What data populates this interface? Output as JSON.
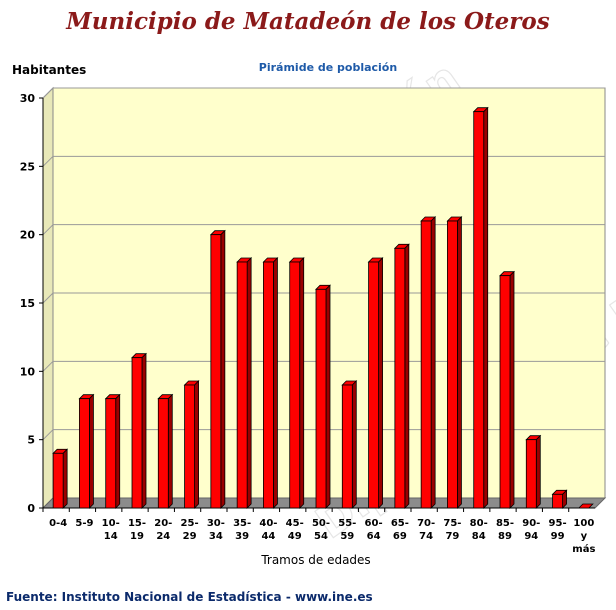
{
  "page_title": "Municipio de Matadeón de los Oteros",
  "watermark": "Diputación de León",
  "source": "Fuente: Instituto Nacional de Estadística - www.ine.es",
  "colors": {
    "bar": "#ff0000",
    "bar_dark": "#9a0000",
    "plot_bg": "#ffffcc",
    "title": "#8b1a1a",
    "subtitle": "#1e5aa8"
  },
  "chart_data": {
    "type": "bar",
    "title": "Pirámide de población",
    "ylabel": "Habitantes",
    "xlabel": "Tramos de edades",
    "ylim": [
      0,
      30
    ],
    "yticks": [
      0,
      5,
      10,
      15,
      20,
      25,
      30
    ],
    "grid": true,
    "categories": [
      "0-4",
      "5-9",
      "10-14",
      "15-19",
      "20-24",
      "25-29",
      "30-34",
      "35-39",
      "40-44",
      "45-49",
      "50-54",
      "55-59",
      "60-64",
      "65-69",
      "70-74",
      "75-79",
      "80-84",
      "85-89",
      "90-94",
      "95-99",
      "100 y más"
    ],
    "values": [
      4,
      8,
      8,
      11,
      8,
      9,
      20,
      18,
      18,
      18,
      16,
      9,
      18,
      19,
      21,
      21,
      29,
      17,
      5,
      1,
      0
    ]
  }
}
